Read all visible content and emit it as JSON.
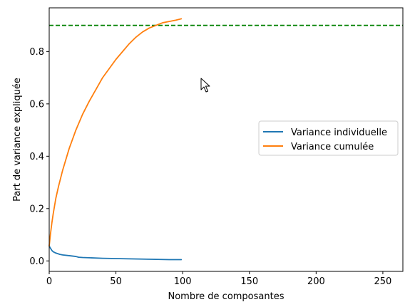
{
  "chart_data": {
    "type": "line",
    "title": "",
    "xlabel": "Nombre de composantes",
    "ylabel": "Part de variance expliquée",
    "xlim": [
      0,
      265
    ],
    "ylim": [
      -0.04,
      0.967
    ],
    "xticks": [
      0,
      50,
      100,
      150,
      200,
      250
    ],
    "yticks": [
      0.0,
      0.2,
      0.4,
      0.6,
      0.8
    ],
    "xtick_labels": [
      "0",
      "50",
      "100",
      "150",
      "200",
      "250"
    ],
    "ytick_labels": [
      "0.0",
      "0.2",
      "0.4",
      "0.6",
      "0.8"
    ],
    "grid": false,
    "legend_position": "center-right",
    "series": [
      {
        "name": "Variance individuelle",
        "color": "#1f77b4",
        "x": [
          0,
          1,
          2,
          3,
          5,
          8,
          10,
          15,
          20,
          22,
          25,
          30,
          40,
          50,
          60,
          70,
          80,
          90,
          99
        ],
        "y": [
          0.057,
          0.048,
          0.04,
          0.035,
          0.03,
          0.025,
          0.023,
          0.02,
          0.017,
          0.014,
          0.013,
          0.012,
          0.01,
          0.009,
          0.008,
          0.007,
          0.006,
          0.005,
          0.005
        ]
      },
      {
        "name": "Variance cumulée",
        "color": "#ff7f0e",
        "x": [
          0,
          1,
          2,
          3,
          4,
          5,
          7,
          10,
          15,
          20,
          25,
          30,
          35,
          40,
          45,
          50,
          55,
          60,
          65,
          70,
          75,
          80,
          85,
          90,
          95,
          99
        ],
        "y": [
          0.057,
          0.105,
          0.145,
          0.18,
          0.21,
          0.24,
          0.285,
          0.345,
          0.43,
          0.5,
          0.56,
          0.61,
          0.655,
          0.7,
          0.735,
          0.77,
          0.8,
          0.83,
          0.855,
          0.875,
          0.89,
          0.9,
          0.91,
          0.915,
          0.92,
          0.925
        ]
      }
    ],
    "reference_lines": [
      {
        "orientation": "horizontal",
        "y": 0.9,
        "color": "#008000",
        "style": "dashed"
      }
    ]
  }
}
